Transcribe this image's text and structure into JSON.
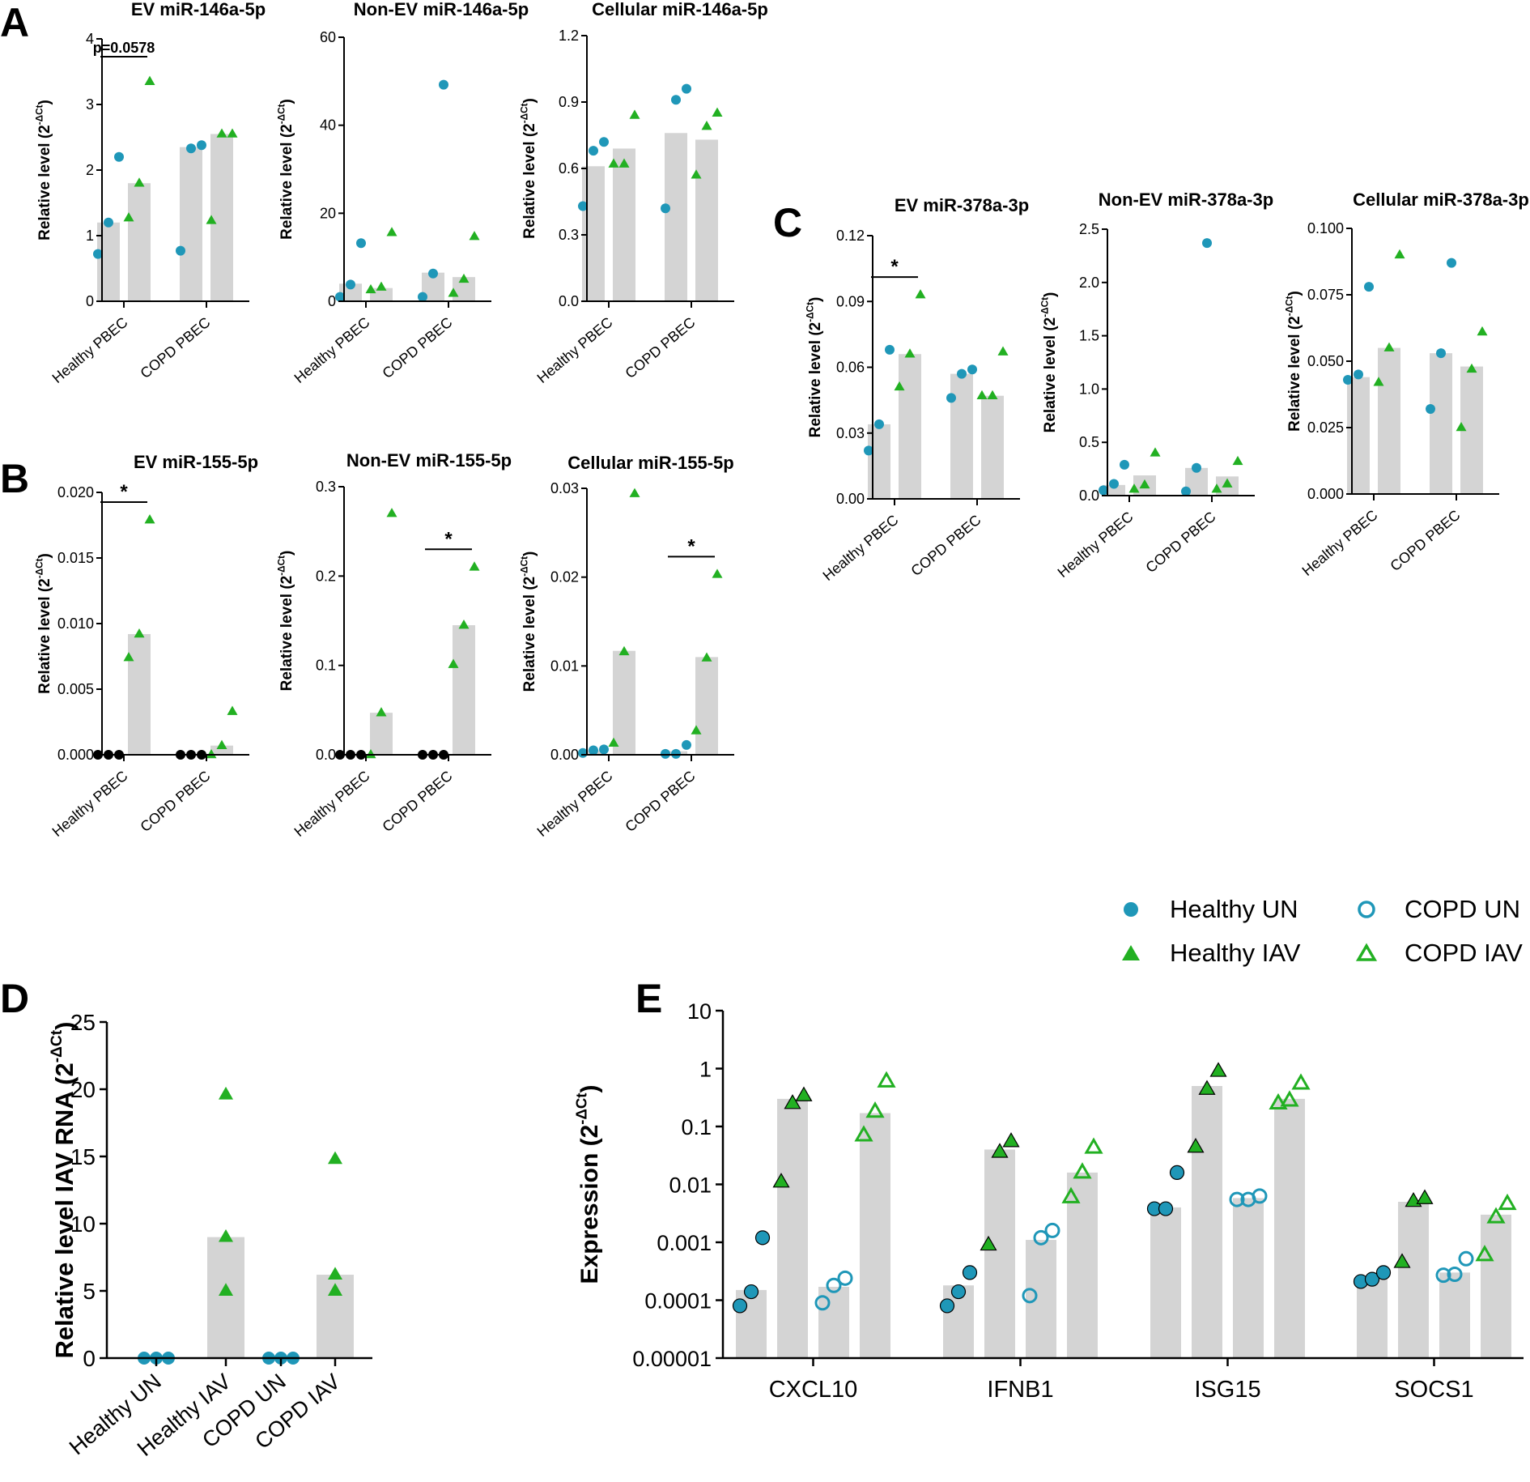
{
  "colors": {
    "bar": "#d4d4d4",
    "healthy_un": "#1f97b8",
    "healthy_iav": "#22b022",
    "axis": "#000000",
    "zero_point": "#000000"
  },
  "legend": {
    "healthy_un": "Healthy UN",
    "healthy_iav": "Healthy IAV",
    "copd_un": "COPD UN",
    "copd_iav": "COPD IAV"
  },
  "common": {
    "ylabel_rel": "Relative level",
    "ylabel_expr": "Expression",
    "ylabel_iav": "Relative level IAV RNA",
    "dct_base": "2",
    "dct_exp": "-ΔCt",
    "group_labels": [
      "Healthy PBEC",
      "COPD PBEC"
    ],
    "star": "*"
  },
  "chart_data": [
    {
      "panel": "A",
      "type": "bar",
      "title": "EV miR-146a-5p",
      "categories": [
        "Healthy PBEC",
        "COPD PBEC"
      ],
      "ylim": [
        0,
        4
      ],
      "yticks": [
        "0",
        "1",
        "2",
        "3",
        "4"
      ],
      "series": [
        {
          "name": "Healthy UN",
          "bars": [
            1.2,
            2.35
          ],
          "points": [
            [
              0.72,
              1.2,
              2.2
            ],
            [
              0.77,
              2.33,
              2.38
            ]
          ]
        },
        {
          "name": "Healthy IAV",
          "bars": [
            1.8,
            2.55
          ],
          "points": [
            [
              1.27,
              1.8,
              3.35
            ],
            [
              1.23,
              2.55,
              2.55
            ]
          ]
        }
      ],
      "annotations": [
        {
          "text": "p=0.0578",
          "group": 0
        }
      ]
    },
    {
      "panel": "",
      "type": "bar",
      "title": "Non-EV miR-146a-5p",
      "categories": [
        "Healthy PBEC",
        "COPD PBEC"
      ],
      "ylim": [
        0,
        60
      ],
      "yticks": [
        "0",
        "20",
        "40",
        "60"
      ],
      "series": [
        {
          "name": "Healthy UN",
          "bars": [
            4,
            6.5
          ],
          "points": [
            [
              1.0,
              3.8,
              13.2
            ],
            [
              1.0,
              6.3,
              49.2
            ]
          ]
        },
        {
          "name": "Healthy IAV",
          "bars": [
            3,
            5.5
          ],
          "points": [
            [
              2.6,
              3.2,
              15.6
            ],
            [
              1.8,
              5.0,
              14.7
            ]
          ]
        }
      ],
      "annotations": []
    },
    {
      "panel": "",
      "type": "bar",
      "title": "Cellular miR-146a-5p",
      "categories": [
        "Healthy PBEC",
        "COPD PBEC"
      ],
      "ylim": [
        0,
        1.2
      ],
      "yticks": [
        "0.0",
        "0.3",
        "0.6",
        "0.9",
        "1.2"
      ],
      "series": [
        {
          "name": "Healthy UN",
          "bars": [
            0.61,
            0.76
          ],
          "points": [
            [
              0.43,
              0.68,
              0.72
            ],
            [
              0.42,
              0.91,
              0.96
            ]
          ]
        },
        {
          "name": "Healthy IAV",
          "bars": [
            0.69,
            0.73
          ],
          "points": [
            [
              0.62,
              0.62,
              0.84
            ],
            [
              0.57,
              0.79,
              0.85
            ]
          ]
        }
      ],
      "annotations": []
    },
    {
      "panel": "B",
      "type": "bar",
      "title": "EV miR-155-5p",
      "categories": [
        "Healthy PBEC",
        "COPD PBEC"
      ],
      "ylim": [
        0,
        0.02
      ],
      "yticks": [
        "0.000",
        "0.005",
        "0.010",
        "0.015",
        "0.020"
      ],
      "series": [
        {
          "name": "Healthy UN",
          "bars": [
            0,
            0
          ],
          "points": [
            [
              0,
              0,
              0
            ],
            [
              0,
              0,
              0
            ]
          ]
        },
        {
          "name": "Healthy IAV",
          "bars": [
            0.0092,
            0.0007
          ],
          "points": [
            [
              0.0074,
              0.0092,
              0.0179
            ],
            [
              0.0,
              0.0007,
              0.0033
            ]
          ]
        }
      ],
      "annotations": [
        {
          "text": "*",
          "group": 0
        }
      ]
    },
    {
      "panel": "",
      "type": "bar",
      "title": "Non-EV miR-155-5p",
      "categories": [
        "Healthy PBEC",
        "COPD PBEC"
      ],
      "ylim": [
        0,
        0.3
      ],
      "yticks": [
        "0.0",
        "0.1",
        "0.2",
        "0.3"
      ],
      "series": [
        {
          "name": "Healthy UN",
          "bars": [
            0,
            0
          ],
          "points": [
            [
              0,
              0,
              0
            ],
            [
              0,
              0,
              0
            ]
          ]
        },
        {
          "name": "Healthy IAV",
          "bars": [
            0.047,
            0.145
          ],
          "points": [
            [
              0.0,
              0.047,
              0.27
            ],
            [
              0.101,
              0.145,
              0.21
            ]
          ]
        }
      ],
      "annotations": [
        {
          "text": "*",
          "group": 1
        }
      ]
    },
    {
      "panel": "",
      "type": "bar",
      "title": "Cellular miR-155-5p",
      "categories": [
        "Healthy PBEC",
        "COPD PBEC"
      ],
      "ylim": [
        0,
        0.03
      ],
      "yticks": [
        "0.00",
        "0.01",
        "0.02",
        "0.03"
      ],
      "series": [
        {
          "name": "Healthy UN",
          "bars": [
            0.0005,
            0.0004
          ],
          "points": [
            [
              0.0002,
              0.0005,
              0.0006
            ],
            [
              0.0001,
              0.0001,
              0.0011
            ]
          ]
        },
        {
          "name": "Healthy IAV",
          "bars": [
            0.0117,
            0.011
          ],
          "points": [
            [
              0.0013,
              0.0116,
              0.0294
            ],
            [
              0.0027,
              0.0109,
              0.0203
            ]
          ]
        }
      ],
      "annotations": [
        {
          "text": "*",
          "group": 1
        }
      ]
    },
    {
      "panel": "C",
      "type": "bar",
      "title": "EV miR-378a-3p",
      "categories": [
        "Healthy PBEC",
        "COPD PBEC"
      ],
      "ylim": [
        0,
        0.12
      ],
      "yticks": [
        "0.00",
        "0.03",
        "0.06",
        "0.09",
        "0.12"
      ],
      "series": [
        {
          "name": "Healthy UN",
          "bars": [
            0.034,
            0.057
          ],
          "points": [
            [
              0.022,
              0.034,
              0.068
            ],
            [
              0.046,
              0.057,
              0.059
            ]
          ]
        },
        {
          "name": "Healthy IAV",
          "bars": [
            0.066,
            0.047
          ],
          "points": [
            [
              0.051,
              0.066,
              0.093
            ],
            [
              0.047,
              0.047,
              0.067
            ]
          ]
        }
      ],
      "annotations": [
        {
          "text": "*",
          "group": 0
        }
      ]
    },
    {
      "panel": "",
      "type": "bar",
      "title": "Non-EV miR-378a-3p",
      "categories": [
        "Healthy PBEC",
        "COPD PBEC"
      ],
      "ylim": [
        0,
        2.5
      ],
      "yticks": [
        "0.0",
        "0.5",
        "1.0",
        "1.5",
        "2.0",
        "2.5"
      ],
      "series": [
        {
          "name": "Healthy UN",
          "bars": [
            0.1,
            0.26
          ],
          "points": [
            [
              0.05,
              0.11,
              0.29
            ],
            [
              0.04,
              0.26,
              2.37
            ]
          ]
        },
        {
          "name": "Healthy IAV",
          "bars": [
            0.19,
            0.18
          ],
          "points": [
            [
              0.06,
              0.1,
              0.4
            ],
            [
              0.06,
              0.11,
              0.32
            ]
          ]
        }
      ],
      "annotations": []
    },
    {
      "panel": "",
      "type": "bar",
      "title": "Cellular miR-378a-3p",
      "categories": [
        "Healthy PBEC",
        "COPD PBEC"
      ],
      "ylim": [
        0,
        0.1
      ],
      "yticks": [
        "0.000",
        "0.025",
        "0.050",
        "0.075",
        "0.100"
      ],
      "series": [
        {
          "name": "Healthy UN",
          "bars": [
            0.044,
            0.053
          ],
          "points": [
            [
              0.043,
              0.045,
              0.078
            ],
            [
              0.032,
              0.053,
              0.087
            ]
          ]
        },
        {
          "name": "Healthy IAV",
          "bars": [
            0.055,
            0.048
          ],
          "points": [
            [
              0.042,
              0.055,
              0.09
            ],
            [
              0.025,
              0.047,
              0.061
            ]
          ]
        }
      ],
      "annotations": []
    },
    {
      "panel": "D",
      "type": "bar",
      "categories": [
        "Healthy UN",
        "Healthy IAV",
        "COPD UN",
        "COPD IAV"
      ],
      "ylim": [
        0,
        25
      ],
      "yticks": [
        "0",
        "5",
        "10",
        "15",
        "20",
        "25"
      ],
      "values": [
        0,
        9,
        0,
        6.2
      ],
      "points": [
        [
          0,
          0,
          0
        ],
        [
          5,
          9,
          19.6
        ],
        [
          0,
          0,
          0
        ],
        [
          5,
          6.2,
          14.8
        ]
      ]
    },
    {
      "panel": "E",
      "type": "bar",
      "yscale": "log",
      "categories": [
        "CXCL10",
        "IFNB1",
        "ISG15",
        "SOCS1"
      ],
      "series_names": [
        "Healthy UN",
        "Healthy IAV",
        "COPD UN",
        "COPD IAV"
      ],
      "ylim": [
        1e-05,
        10
      ],
      "yticks": [
        "0.00001",
        "0.0001",
        "0.001",
        "0.01",
        "0.1",
        "1",
        "10"
      ],
      "values": [
        [
          0.00015,
          0.3,
          0.00017,
          0.17
        ],
        [
          0.00018,
          0.04,
          0.0011,
          0.016
        ],
        [
          0.004,
          0.5,
          0.0058,
          0.3
        ],
        [
          0.00025,
          0.005,
          0.0003,
          0.003
        ]
      ],
      "points": [
        [
          [
            8e-05,
            0.00014,
            0.0012
          ],
          [
            0.011,
            0.25,
            0.34
          ],
          [
            9e-05,
            0.00018,
            0.00024
          ],
          [
            0.07,
            0.18,
            0.6
          ]
        ],
        [
          [
            8e-05,
            0.00014,
            0.0003
          ],
          [
            0.0009,
            0.036,
            0.055
          ],
          [
            0.00012,
            0.0012,
            0.0016
          ],
          [
            0.006,
            0.016,
            0.043
          ]
        ],
        [
          [
            0.0038,
            0.0038,
            0.016
          ],
          [
            0.044,
            0.44,
            0.9
          ],
          [
            0.0055,
            0.0055,
            0.0063
          ],
          [
            0.25,
            0.28,
            0.55
          ]
        ],
        [
          [
            0.00021,
            0.00023,
            0.0003
          ],
          [
            0.00045,
            0.0051,
            0.0057
          ],
          [
            0.00027,
            0.00028,
            0.00052
          ],
          [
            0.0006,
            0.0027,
            0.0046
          ]
        ]
      ]
    }
  ]
}
